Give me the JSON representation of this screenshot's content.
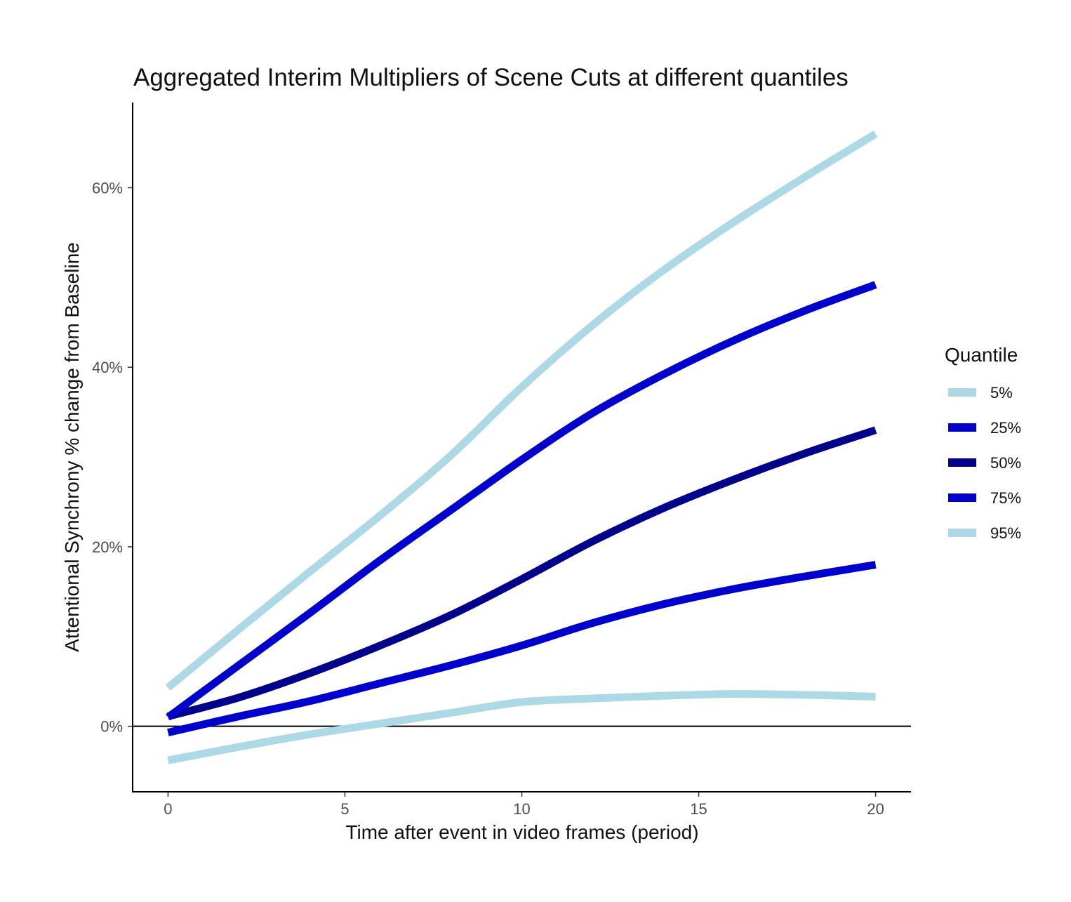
{
  "chart_data": {
    "type": "line",
    "title": "Aggregated Interim Multipliers of Scene Cuts at different quantiles",
    "xlabel": "Time after event in video frames (period)",
    "ylabel": "Attentional Synchrony % change from Baseline",
    "xlim": [
      -1,
      21
    ],
    "ylim": [
      -7.3,
      69.5
    ],
    "x_ticks": [
      0,
      5,
      10,
      15,
      20
    ],
    "x_tick_labels": [
      "0",
      "5",
      "10",
      "15",
      "20"
    ],
    "y_ticks": [
      0,
      20,
      40,
      60
    ],
    "y_tick_labels": [
      "0%",
      "20%",
      "40%",
      "60%"
    ],
    "reference_line_y": 0,
    "grid": false,
    "legend": {
      "title": "Quantile",
      "position": "right"
    },
    "x": [
      0,
      2,
      4,
      6,
      8,
      10,
      12,
      14,
      16,
      18,
      20
    ],
    "series": [
      {
        "name": "5%",
        "color": "#add8e6",
        "values": [
          -3.8,
          -2.3,
          -0.9,
          0.3,
          1.5,
          2.7,
          3.1,
          3.4,
          3.6,
          3.5,
          3.3
        ]
      },
      {
        "name": "25%",
        "color": "#0000cd",
        "values": [
          -0.7,
          1.1,
          2.8,
          4.8,
          6.8,
          9.0,
          11.5,
          13.6,
          15.3,
          16.7,
          18.0
        ]
      },
      {
        "name": "50%",
        "color": "#00008b",
        "values": [
          1.1,
          3.2,
          5.9,
          9.0,
          12.4,
          16.4,
          20.6,
          24.3,
          27.5,
          30.4,
          33.0
        ]
      },
      {
        "name": "75%",
        "color": "#0000cd",
        "values": [
          1.0,
          6.8,
          12.6,
          18.5,
          24.1,
          29.7,
          34.9,
          39.2,
          43.0,
          46.3,
          49.2
        ]
      },
      {
        "name": "95%",
        "color": "#add8e6",
        "values": [
          4.3,
          10.8,
          17.2,
          23.5,
          30.2,
          37.8,
          44.7,
          50.8,
          56.2,
          61.2,
          66.0
        ]
      }
    ]
  }
}
